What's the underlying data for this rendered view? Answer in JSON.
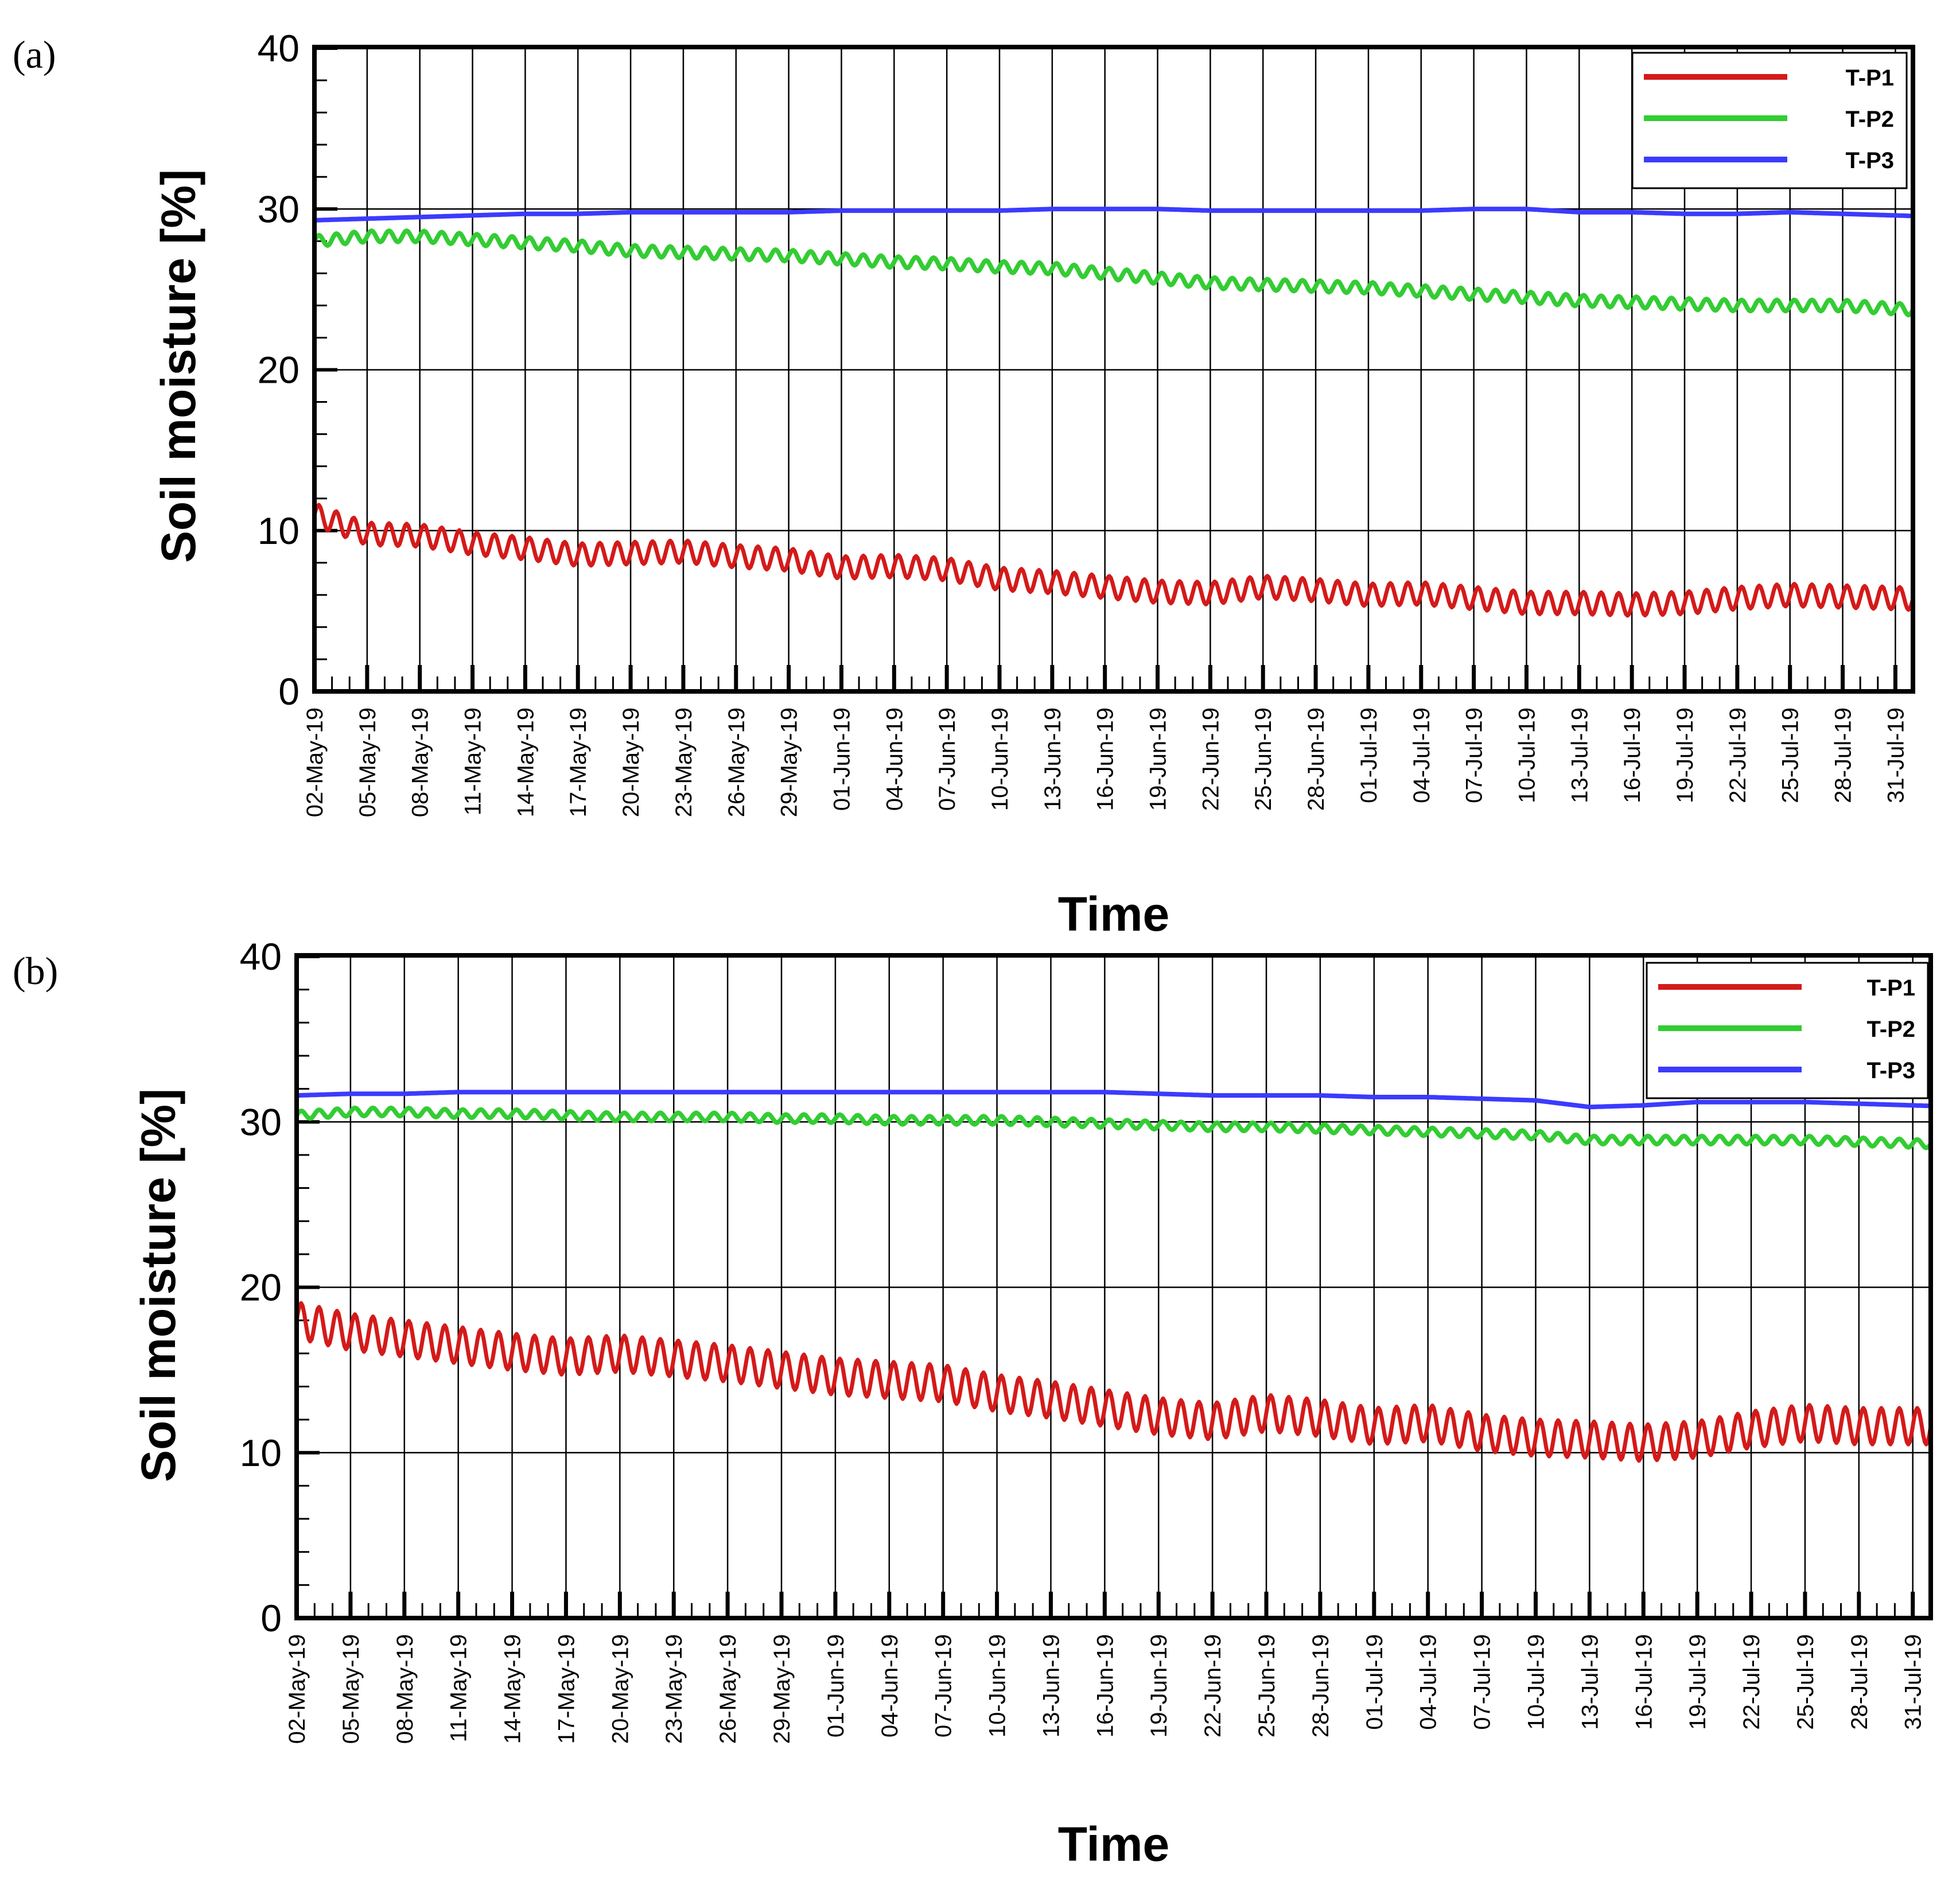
{
  "figure": {
    "colors": {
      "T-P1": "#d41a1a",
      "T-P2": "#33cc33",
      "T-P3": "#3b3bff",
      "grid": "#000000"
    }
  },
  "chart_data": [
    {
      "type": "line",
      "panel_label": "(a)",
      "xlabel": "Time",
      "ylabel": "Soil moisture [%]",
      "ylim": [
        0,
        40
      ],
      "yticks": [
        0,
        10,
        20,
        30,
        40
      ],
      "x_range_days": [
        0,
        91
      ],
      "categories": [
        "02-May-19",
        "05-May-19",
        "08-May-19",
        "11-May-19",
        "14-May-19",
        "17-May-19",
        "20-May-19",
        "23-May-19",
        "26-May-19",
        "29-May-19",
        "01-Jun-19",
        "04-Jun-19",
        "07-Jun-19",
        "10-Jun-19",
        "13-Jun-19",
        "16-Jun-19",
        "19-Jun-19",
        "22-Jun-19",
        "25-Jun-19",
        "28-Jun-19",
        "01-Jul-19",
        "04-Jul-19",
        "07-Jul-19",
        "10-Jul-19",
        "13-Jul-19",
        "16-Jul-19",
        "19-Jul-19",
        "22-Jul-19",
        "25-Jul-19",
        "28-Jul-19",
        "31-Jul-19"
      ],
      "legend_position": "top-right",
      "grid": true,
      "series": [
        {
          "name": "T-P1",
          "color": "#d41a1a",
          "daily_amplitude": 0.7,
          "values": [
            11.0,
            9.8,
            9.7,
            9.2,
            8.9,
            8.5,
            8.6,
            8.7,
            8.4,
            8.2,
            7.7,
            7.8,
            7.6,
            7.0,
            6.8,
            6.5,
            6.2,
            6.1,
            6.5,
            6.3,
            6.0,
            6.1,
            5.8,
            5.5,
            5.5,
            5.4,
            5.5,
            5.8,
            6.0,
            5.9,
            5.8
          ]
        },
        {
          "name": "T-P2",
          "color": "#33cc33",
          "daily_amplitude": 0.35,
          "values": [
            28.0,
            28.3,
            28.3,
            28.1,
            27.9,
            27.7,
            27.4,
            27.3,
            27.2,
            27.1,
            26.9,
            26.7,
            26.6,
            26.4,
            26.3,
            26.0,
            25.7,
            25.4,
            25.3,
            25.2,
            25.1,
            24.9,
            24.7,
            24.5,
            24.3,
            24.2,
            24.1,
            24.0,
            24.0,
            24.0,
            23.8
          ]
        },
        {
          "name": "T-P3",
          "color": "#3b3bff",
          "daily_amplitude": 0.0,
          "values": [
            29.3,
            29.4,
            29.5,
            29.6,
            29.7,
            29.7,
            29.8,
            29.8,
            29.8,
            29.8,
            29.9,
            29.9,
            29.9,
            29.9,
            30.0,
            30.0,
            30.0,
            29.9,
            29.9,
            29.9,
            29.9,
            29.9,
            30.0,
            30.0,
            29.8,
            29.8,
            29.7,
            29.7,
            29.8,
            29.7,
            29.6
          ]
        }
      ]
    },
    {
      "type": "line",
      "panel_label": "(b)",
      "xlabel": "Time",
      "ylabel": "Soil moisture [%]",
      "ylim": [
        0,
        40
      ],
      "yticks": [
        0,
        10,
        20,
        30,
        40
      ],
      "x_range_days": [
        0,
        91
      ],
      "categories": [
        "02-May-19",
        "05-May-19",
        "08-May-19",
        "11-May-19",
        "14-May-19",
        "17-May-19",
        "20-May-19",
        "23-May-19",
        "26-May-19",
        "29-May-19",
        "01-Jun-19",
        "04-Jun-19",
        "07-Jun-19",
        "10-Jun-19",
        "13-Jun-19",
        "16-Jun-19",
        "19-Jun-19",
        "22-Jun-19",
        "25-Jun-19",
        "28-Jun-19",
        "01-Jul-19",
        "04-Jul-19",
        "07-Jul-19",
        "10-Jul-19",
        "13-Jul-19",
        "16-Jul-19",
        "19-Jul-19",
        "22-Jul-19",
        "25-Jul-19",
        "28-Jul-19",
        "31-Jul-19"
      ],
      "legend_position": "top-right",
      "grid": true,
      "series": [
        {
          "name": "T-P1",
          "color": "#d41a1a",
          "daily_amplitude": 1.1,
          "values": [
            18.0,
            17.3,
            16.9,
            16.5,
            16.1,
            15.8,
            16.0,
            15.7,
            15.4,
            15.0,
            14.6,
            14.4,
            14.2,
            13.6,
            13.2,
            12.7,
            12.2,
            11.9,
            12.4,
            12.1,
            11.6,
            11.8,
            11.2,
            10.9,
            10.8,
            10.6,
            10.8,
            11.4,
            11.8,
            11.6,
            11.6
          ]
        },
        {
          "name": "T-P2",
          "color": "#33cc33",
          "daily_amplitude": 0.25,
          "values": [
            30.4,
            30.6,
            30.6,
            30.5,
            30.5,
            30.4,
            30.3,
            30.3,
            30.3,
            30.2,
            30.2,
            30.1,
            30.1,
            30.1,
            30.0,
            29.9,
            29.8,
            29.7,
            29.7,
            29.6,
            29.5,
            29.4,
            29.3,
            29.2,
            28.9,
            28.9,
            28.9,
            28.9,
            28.9,
            28.8,
            28.7
          ]
        },
        {
          "name": "T-P3",
          "color": "#3b3bff",
          "daily_amplitude": 0.0,
          "values": [
            31.6,
            31.7,
            31.7,
            31.8,
            31.8,
            31.8,
            31.8,
            31.8,
            31.8,
            31.8,
            31.8,
            31.8,
            31.8,
            31.8,
            31.8,
            31.8,
            31.7,
            31.6,
            31.6,
            31.6,
            31.5,
            31.5,
            31.4,
            31.3,
            30.9,
            31.0,
            31.2,
            31.2,
            31.2,
            31.1,
            31.0
          ]
        }
      ]
    }
  ]
}
